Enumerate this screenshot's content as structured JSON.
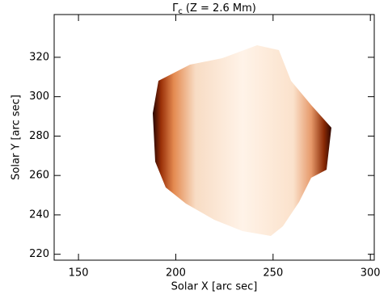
{
  "chart_data": {
    "type": "image",
    "title_symbol": "Γ",
    "title_subscript": "c",
    "title_rest": "(Z = 2.6 Mm)",
    "x_label": "Solar X [arc sec]",
    "y_label": "Solar Y [arc sec]",
    "xlim": [
      137.5,
      302
    ],
    "ylim": [
      217,
      341.7
    ],
    "xticks": [
      150,
      200,
      250,
      300
    ],
    "yticks": [
      220,
      240,
      260,
      280,
      300,
      320
    ]
  }
}
